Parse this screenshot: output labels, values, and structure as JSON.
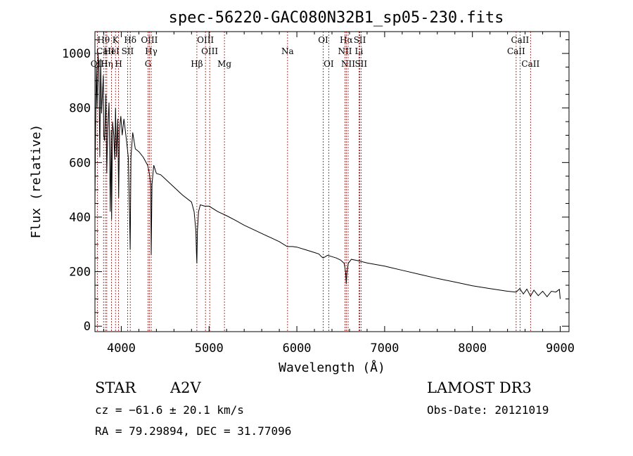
{
  "chart_data": {
    "type": "line",
    "title": "spec-56220-GAC080N32B1_sp05-230.fits",
    "xlabel": "Wavelength (Å)",
    "ylabel": "Flux (relative)",
    "xlim": [
      3700,
      9100
    ],
    "ylim": [
      -20,
      1080
    ],
    "xticks": [
      4000,
      5000,
      6000,
      7000,
      8000,
      9000
    ],
    "xtick_labels": [
      "4000",
      "5000",
      "6000",
      "7000",
      "8000",
      "9000"
    ],
    "yticks": [
      0,
      200,
      400,
      600,
      800,
      1000
    ],
    "ytick_labels": [
      "0",
      "200",
      "400",
      "600",
      "800",
      "1000"
    ],
    "series": [
      {
        "name": "spectrum",
        "x": [
          3700,
          3705,
          3715,
          3725,
          3735,
          3745,
          3755,
          3765,
          3775,
          3785,
          3795,
          3800,
          3810,
          3825,
          3835,
          3845,
          3860,
          3875,
          3885,
          3890,
          3900,
          3915,
          3925,
          3935,
          3945,
          3960,
          3970,
          3980,
          3995,
          4010,
          4030,
          4060,
          4080,
          4095,
          4101,
          4110,
          4130,
          4160,
          4200,
          4250,
          4300,
          4320,
          4335,
          4341,
          4350,
          4370,
          4400,
          4450,
          4500,
          4600,
          4700,
          4800,
          4830,
          4850,
          4856,
          4861,
          4867,
          4880,
          4900,
          4950,
          5000,
          5100,
          5200,
          5300,
          5400,
          5500,
          5600,
          5700,
          5800,
          5890,
          5950,
          6000,
          6100,
          6200,
          6250,
          6280,
          6300,
          6350,
          6400,
          6450,
          6500,
          6540,
          6556,
          6563,
          6570,
          6585,
          6620,
          6700,
          6800,
          7000,
          7200,
          7400,
          7600,
          7800,
          8000,
          8200,
          8400,
          8498,
          8540,
          8580,
          8620,
          8662,
          8700,
          8750,
          8800,
          8850,
          8900,
          8950,
          8990,
          9000
        ],
        "values": [
          440,
          650,
          950,
          800,
          1000,
          950,
          620,
          980,
          780,
          850,
          920,
          700,
          680,
          850,
          560,
          720,
          820,
          420,
          720,
          390,
          750,
          700,
          610,
          800,
          620,
          760,
          470,
          720,
          770,
          700,
          760,
          680,
          620,
          400,
          280,
          620,
          710,
          650,
          640,
          620,
          590,
          560,
          520,
          260,
          520,
          590,
          560,
          555,
          540,
          510,
          480,
          455,
          420,
          350,
          270,
          230,
          350,
          420,
          445,
          440,
          440,
          420,
          405,
          388,
          370,
          355,
          340,
          325,
          310,
          292,
          292,
          290,
          280,
          270,
          265,
          255,
          250,
          260,
          255,
          250,
          242,
          230,
          195,
          155,
          195,
          230,
          245,
          240,
          232,
          220,
          205,
          190,
          175,
          162,
          148,
          138,
          128,
          125,
          138,
          118,
          136,
          110,
          132,
          112,
          128,
          108,
          128,
          125,
          135,
          100
        ]
      }
    ],
    "spectral_lines": [
      {
        "name": "OII",
        "wavelength": 3727,
        "row": 3
      },
      {
        "name": "Hθ",
        "wavelength": 3798,
        "row": 1
      },
      {
        "name": "CaII",
        "wavelength": 3820,
        "row": 2
      },
      {
        "name": "Hη",
        "wavelength": 3835,
        "row": 3
      },
      {
        "name": "HeI",
        "wavelength": 3889,
        "row": 2
      },
      {
        "name": "K",
        "wavelength": 3934,
        "row": 1
      },
      {
        "name": "H",
        "wavelength": 3969,
        "row": 3
      },
      {
        "name": "SII",
        "wavelength": 4072,
        "row": 2
      },
      {
        "name": "Hδ",
        "wavelength": 4102,
        "row": 1
      },
      {
        "name": "G",
        "wavelength": 4305,
        "row": 3
      },
      {
        "name": "OIII",
        "wavelength": 4320,
        "row": 1
      },
      {
        "name": "Hγ",
        "wavelength": 4341,
        "row": 2
      },
      {
        "name": "Hβ",
        "wavelength": 4861,
        "row": 3
      },
      {
        "name": "OIII",
        "wavelength": 4959,
        "row": 1
      },
      {
        "name": "OIII",
        "wavelength": 5007,
        "row": 2
      },
      {
        "name": "Mg",
        "wavelength": 5175,
        "row": 3
      },
      {
        "name": "Na",
        "wavelength": 5894,
        "row": 2
      },
      {
        "name": "OI",
        "wavelength": 6300,
        "row": 1
      },
      {
        "name": "OI",
        "wavelength": 6363,
        "row": 3
      },
      {
        "name": "NII",
        "wavelength": 6548,
        "row": 2
      },
      {
        "name": "Hα",
        "wavelength": 6563,
        "row": 1
      },
      {
        "name": "NII",
        "wavelength": 6584,
        "row": 3
      },
      {
        "name": "SII",
        "wavelength": 6717,
        "row": 1
      },
      {
        "name": "Li",
        "wavelength": 6708,
        "row": 2
      },
      {
        "name": "SII",
        "wavelength": 6731,
        "row": 3
      },
      {
        "name": "CaII",
        "wavelength": 8498,
        "row": 2
      },
      {
        "name": "CaII",
        "wavelength": 8542,
        "row": 1
      },
      {
        "name": "CaII",
        "wavelength": 8662,
        "row": 3
      }
    ]
  },
  "info": {
    "class": "STAR",
    "subclass": "A2V",
    "survey": "LAMOST DR3",
    "cz": "cz = −61.6 ± 20.1 km/s",
    "obs_date": "Obs-Date: 20121019",
    "radec": "RA =  79.29894, DEC =  31.77096"
  },
  "colors": {
    "spectrum": "#000000",
    "line_marker": "#b00000"
  }
}
